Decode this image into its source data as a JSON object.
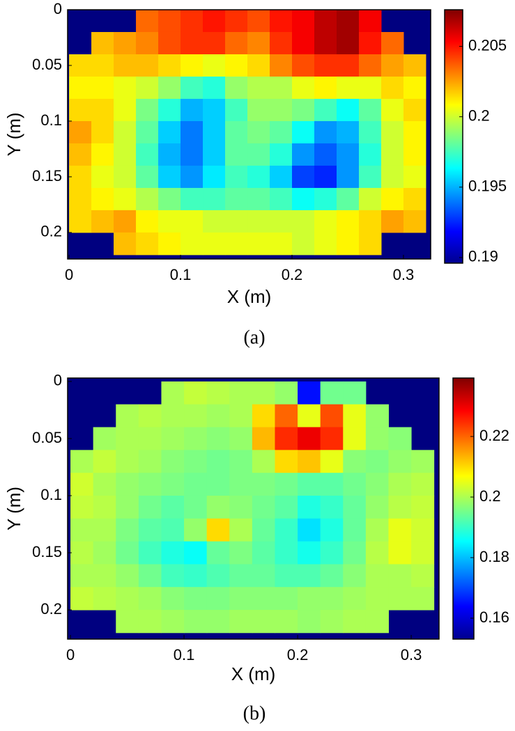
{
  "chart_data": [
    {
      "type": "heatmap",
      "caption": "(a)",
      "x_label": "X (m)",
      "y_label": "Y (m)",
      "colormap": "jet",
      "x": [
        0.01,
        0.03,
        0.05,
        0.07,
        0.09,
        0.11,
        0.13,
        0.15,
        0.17,
        0.19,
        0.21,
        0.23,
        0.25,
        0.27,
        0.29,
        0.31
      ],
      "y": [
        0.01,
        0.03,
        0.05,
        0.07,
        0.09,
        0.11,
        0.13,
        0.15,
        0.17,
        0.19,
        0.21
      ],
      "z": [
        [
          null,
          null,
          null,
          0.2035,
          0.204,
          0.2045,
          0.205,
          0.2045,
          0.204,
          0.205,
          0.2055,
          0.2065,
          0.207,
          0.2055,
          null,
          null
        ],
        [
          null,
          0.202,
          0.2025,
          0.203,
          0.204,
          0.2045,
          0.2045,
          0.2035,
          0.203,
          0.2045,
          0.2055,
          0.2065,
          0.207,
          0.205,
          0.2035,
          null
        ],
        [
          0.2015,
          0.2015,
          0.202,
          0.202,
          0.2015,
          0.201,
          0.2005,
          0.201,
          0.2015,
          0.203,
          0.204,
          0.2045,
          0.2045,
          0.2035,
          0.2025,
          0.202
        ],
        [
          0.201,
          0.201,
          0.2005,
          0.2,
          0.199,
          0.1975,
          0.197,
          0.199,
          0.1995,
          0.1995,
          0.2005,
          0.201,
          0.2005,
          0.2005,
          0.2015,
          0.201
        ],
        [
          0.2015,
          0.2015,
          0.2005,
          0.1985,
          0.197,
          0.195,
          0.1955,
          0.1975,
          0.199,
          0.199,
          0.1985,
          0.1975,
          0.1965,
          0.198,
          0.2005,
          0.2015
        ],
        [
          0.2025,
          0.2015,
          0.2,
          0.198,
          0.1955,
          0.194,
          0.1955,
          0.198,
          0.1985,
          0.198,
          0.1965,
          0.1945,
          0.195,
          0.1975,
          0.2,
          0.201
        ],
        [
          0.202,
          0.201,
          0.2,
          0.1975,
          0.195,
          0.194,
          0.1955,
          0.198,
          0.198,
          0.197,
          0.1945,
          0.1935,
          0.1945,
          0.197,
          0.2,
          0.201
        ],
        [
          0.2015,
          0.2005,
          0.2,
          0.198,
          0.1955,
          0.1945,
          0.196,
          0.1975,
          0.197,
          0.1955,
          0.193,
          0.1925,
          0.1945,
          0.1975,
          0.2,
          0.2005
        ],
        [
          0.2015,
          0.201,
          0.2005,
          0.1995,
          0.1985,
          0.1975,
          0.1975,
          0.198,
          0.198,
          0.1975,
          0.1965,
          0.197,
          0.198,
          0.2,
          0.201,
          0.2015
        ],
        [
          0.2015,
          0.202,
          0.2025,
          0.201,
          0.2005,
          0.2005,
          0.2,
          0.2,
          0.2,
          0.2,
          0.2,
          0.2005,
          0.201,
          0.2015,
          0.2025,
          0.202
        ],
        [
          null,
          null,
          0.202,
          0.2015,
          0.201,
          0.2005,
          0.2005,
          0.2005,
          0.2005,
          0.2005,
          0.2,
          0.2005,
          0.201,
          0.2015,
          null,
          null
        ]
      ],
      "xlim": [
        -0.0013,
        0.3244
      ],
      "ylim": [
        0,
        0.2238
      ],
      "y_reversed": true,
      "xticks": [
        0,
        0.1,
        0.2,
        0.3
      ],
      "yticks": [
        0,
        0.05,
        0.1,
        0.15,
        0.2
      ],
      "clim": [
        0.1896,
        0.2076
      ],
      "cticks": [
        0.19,
        0.195,
        0.2,
        0.205
      ]
    },
    {
      "type": "heatmap",
      "caption": "(b)",
      "x_label": "X (m)",
      "y_label": "Y (m)",
      "colormap": "jet",
      "x": [
        0.01,
        0.03,
        0.05,
        0.07,
        0.09,
        0.11,
        0.13,
        0.15,
        0.17,
        0.19,
        0.21,
        0.23,
        0.25,
        0.27,
        0.29,
        0.31
      ],
      "y": [
        0.01,
        0.03,
        0.05,
        0.07,
        0.09,
        0.11,
        0.13,
        0.15,
        0.17,
        0.19,
        0.21
      ],
      "z": [
        [
          null,
          null,
          null,
          null,
          0.2,
          0.202,
          0.201,
          0.2,
          0.2,
          0.198,
          0.165,
          0.195,
          0.195,
          null,
          null,
          null
        ],
        [
          null,
          null,
          0.2,
          0.201,
          0.2,
          0.2,
          0.199,
          0.2,
          0.21,
          0.22,
          0.205,
          0.222,
          0.205,
          0.198,
          null,
          null
        ],
        [
          null,
          0.199,
          0.2,
          0.2,
          0.199,
          0.198,
          0.197,
          0.198,
          0.213,
          0.225,
          0.23,
          0.225,
          0.205,
          0.198,
          0.197,
          null
        ],
        [
          0.2,
          0.202,
          0.2,
          0.199,
          0.197,
          0.196,
          0.195,
          0.196,
          0.2,
          0.21,
          0.212,
          0.205,
          0.197,
          0.196,
          0.198,
          0.199
        ],
        [
          0.203,
          0.2,
          0.198,
          0.197,
          0.196,
          0.195,
          0.195,
          0.196,
          0.196,
          0.195,
          0.193,
          0.193,
          0.195,
          0.197,
          0.2,
          0.201
        ],
        [
          0.202,
          0.201,
          0.198,
          0.195,
          0.193,
          0.195,
          0.198,
          0.197,
          0.195,
          0.193,
          0.188,
          0.19,
          0.194,
          0.198,
          0.201,
          0.202
        ],
        [
          0.2,
          0.2,
          0.196,
          0.193,
          0.192,
          0.198,
          0.21,
          0.2,
          0.194,
          0.19,
          0.183,
          0.188,
          0.194,
          0.2,
          0.205,
          0.203
        ],
        [
          0.201,
          0.199,
          0.195,
          0.191,
          0.188,
          0.186,
          0.194,
          0.196,
          0.193,
          0.19,
          0.187,
          0.19,
          0.195,
          0.201,
          0.205,
          0.203
        ],
        [
          0.2,
          0.2,
          0.198,
          0.195,
          0.191,
          0.19,
          0.192,
          0.194,
          0.194,
          0.192,
          0.192,
          0.194,
          0.197,
          0.2,
          0.2,
          0.201
        ],
        [
          0.202,
          0.201,
          0.2,
          0.199,
          0.197,
          0.196,
          0.196,
          0.197,
          0.197,
          0.197,
          0.198,
          0.198,
          0.199,
          0.2,
          0.2,
          0.2
        ],
        [
          null,
          null,
          0.2,
          0.2,
          0.199,
          0.198,
          0.198,
          0.199,
          0.199,
          0.199,
          0.198,
          0.199,
          0.2,
          0.2,
          null,
          null
        ]
      ],
      "xlim": [
        -0.0025,
        0.3245
      ],
      "ylim": [
        -0.003,
        0.2256
      ],
      "y_reversed": true,
      "xticks": [
        0,
        0.1,
        0.2,
        0.3
      ],
      "yticks": [
        0,
        0.05,
        0.1,
        0.15,
        0.2
      ],
      "clim": [
        0.1531,
        0.2393
      ],
      "cticks": [
        0.16,
        0.18,
        0.2,
        0.22
      ]
    }
  ]
}
